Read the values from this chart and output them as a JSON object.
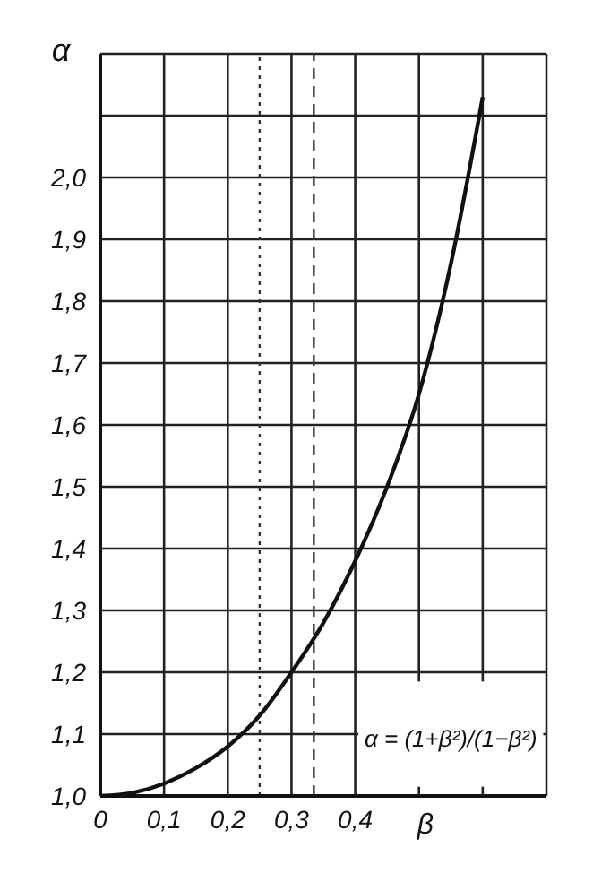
{
  "chart_data": {
    "type": "line",
    "xlabel": "β",
    "ylabel": "α",
    "x": [
      0,
      0.05,
      0.1,
      0.15,
      0.2,
      0.25,
      0.3,
      0.35,
      0.4,
      0.45,
      0.5,
      0.55,
      0.6
    ],
    "series": [
      {
        "color": "#111111",
        "values": [
          1.0,
          1.005,
          1.02,
          1.045,
          1.08,
          1.13,
          1.2,
          1.28,
          1.38,
          1.5,
          1.65,
          1.86,
          2.13
        ]
      }
    ],
    "xlim": [
      0,
      0.7
    ],
    "ylim": [
      1.0,
      2.2
    ],
    "xticks": [
      {
        "value": 0,
        "label": "0"
      },
      {
        "value": 0.1,
        "label": "0,1"
      },
      {
        "value": 0.2,
        "label": "0,2"
      },
      {
        "value": 0.3,
        "label": "0,3"
      },
      {
        "value": 0.4,
        "label": "0,4"
      },
      {
        "value": 0.5,
        "label": null
      },
      {
        "value": 0.6,
        "label": null
      },
      {
        "value": 0.7,
        "label": null
      }
    ],
    "yticks": [
      {
        "value": 1.0,
        "label": "1,0"
      },
      {
        "value": 1.1,
        "label": "1,1"
      },
      {
        "value": 1.2,
        "label": "1,2"
      },
      {
        "value": 1.3,
        "label": "1,3"
      },
      {
        "value": 1.4,
        "label": "1,4"
      },
      {
        "value": 1.5,
        "label": "1,5"
      },
      {
        "value": 1.6,
        "label": "1,6"
      },
      {
        "value": 1.7,
        "label": "1,7"
      },
      {
        "value": 1.8,
        "label": "1,8"
      },
      {
        "value": 1.9,
        "label": "1,9"
      },
      {
        "value": 2.0,
        "label": "2,0"
      },
      {
        "value": 2.1,
        "label": null
      },
      {
        "value": 2.2,
        "label": null
      }
    ],
    "grid": true,
    "marker": "none",
    "line_style": "solid",
    "ref_lines": [
      {
        "axis": "x",
        "value": 0.25,
        "line_style": "dotted",
        "color": "#333333"
      },
      {
        "axis": "x",
        "value": 0.335,
        "line_style": "dashed",
        "color": "#333333"
      }
    ],
    "annotations": [
      "α = (1+β²)/(1−β²)"
    ]
  }
}
